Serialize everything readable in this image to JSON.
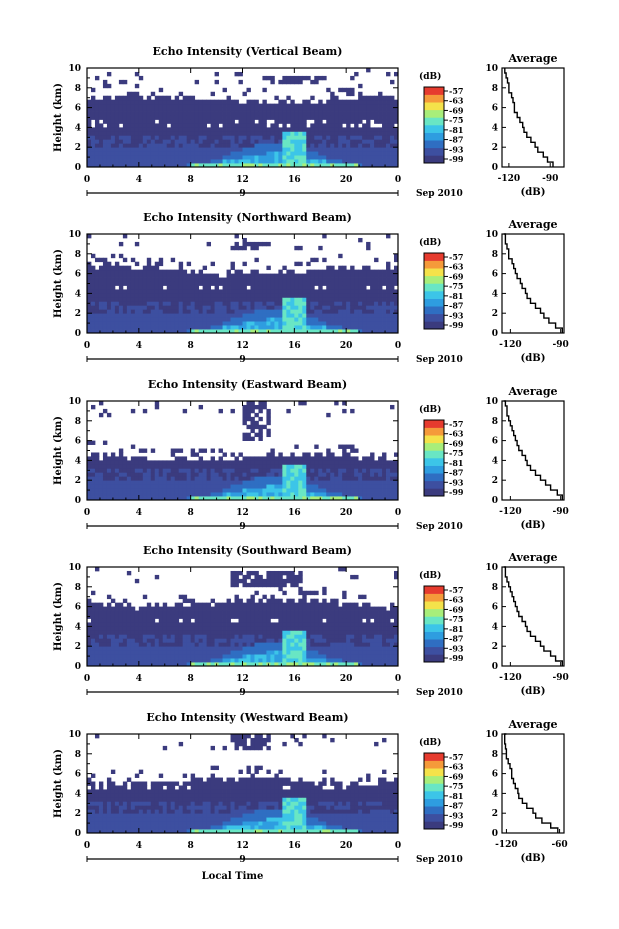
{
  "chart_data": [
    {
      "type": "heatmap",
      "title": "Echo Intensity (Vertical Beam)",
      "ylabel": "Height (km)",
      "xticks": [
        "0",
        "4",
        "8",
        "12",
        "16",
        "20",
        "0"
      ],
      "yticks": [
        "0",
        "2",
        "4",
        "6",
        "8",
        "10"
      ],
      "xlim": [
        0,
        24
      ],
      "ylim": [
        0,
        10
      ],
      "date_label": "9",
      "date_suffix": "Sep 2010",
      "colorbar": {
        "label": "(dB)",
        "ticks": [
          "-57",
          "-63",
          "-69",
          "-75",
          "-81",
          "-87",
          "-93",
          "-99"
        ]
      },
      "grid": {
        "top_base_km": 6.8,
        "mid_top_km": 4.0,
        "upper_patch": [
          14.0,
          18.0,
          8.5,
          9.2
        ],
        "streak_hour": 16
      },
      "average": {
        "title": "Average",
        "xlabel": "(dB)",
        "xticks": [
          "-120",
          "-90"
        ],
        "xlim": [
          -125,
          -80
        ],
        "height_km": [
          0,
          0.5,
          1,
          1.5,
          2,
          2.5,
          3,
          3.5,
          4,
          4.5,
          5,
          5.5,
          6,
          6.5,
          7,
          7.5,
          8,
          8.5,
          9,
          9.5,
          10
        ],
        "db": [
          -88,
          -92,
          -95,
          -99,
          -101,
          -104,
          -107,
          -109,
          -110,
          -112,
          -114,
          -116,
          -116,
          -117,
          -118,
          -120,
          -120,
          -121,
          -122,
          -123,
          -123
        ]
      }
    },
    {
      "type": "heatmap",
      "title": "Echo Intensity (Northward Beam)",
      "ylabel": "Height (km)",
      "xticks": [
        "0",
        "4",
        "8",
        "12",
        "16",
        "20",
        "0"
      ],
      "yticks": [
        "0",
        "2",
        "4",
        "6",
        "8",
        "10"
      ],
      "xlim": [
        0,
        24
      ],
      "ylim": [
        0,
        10
      ],
      "date_label": "9",
      "date_suffix": "Sep 2010",
      "colorbar": {
        "label": "(dB)",
        "ticks": [
          "-57",
          "-63",
          "-69",
          "-75",
          "-81",
          "-87",
          "-93",
          "-99"
        ]
      },
      "grid": {
        "top_base_km": 6.3,
        "mid_top_km": 4.2,
        "upper_patch": [
          11.0,
          14.0,
          8.3,
          9.3
        ],
        "streak_hour": 16
      },
      "average": {
        "title": "Average",
        "xlabel": "(dB)",
        "xticks": [
          "-120",
          "-90"
        ],
        "xlim": [
          -125,
          -88
        ],
        "height_km": [
          0,
          0.5,
          1,
          1.5,
          2,
          2.5,
          3,
          3.5,
          4,
          4.5,
          5,
          5.5,
          6,
          6.5,
          7,
          7.5,
          8,
          8.5,
          9,
          9.5,
          10
        ],
        "db": [
          -89,
          -93,
          -97,
          -100,
          -102,
          -105,
          -108,
          -110,
          -111,
          -113,
          -114,
          -116,
          -117,
          -118,
          -119,
          -121,
          -121,
          -122,
          -123,
          -123,
          -124
        ]
      }
    },
    {
      "type": "heatmap",
      "title": "Echo Intensity (Eastward Beam)",
      "ylabel": "Height (km)",
      "xticks": [
        "0",
        "4",
        "8",
        "12",
        "16",
        "20",
        "0"
      ],
      "yticks": [
        "0",
        "2",
        "4",
        "6",
        "8",
        "10"
      ],
      "xlim": [
        0,
        24
      ],
      "ylim": [
        0,
        10
      ],
      "date_label": "9",
      "date_suffix": "Sep 2010",
      "colorbar": {
        "label": "(dB)",
        "ticks": [
          "-57",
          "-63",
          "-69",
          "-75",
          "-81",
          "-87",
          "-93",
          "-99"
        ]
      },
      "grid": {
        "top_base_km": 4.4,
        "mid_top_km": 4.0,
        "upper_patch": [
          12.0,
          14.0,
          6.0,
          9.8
        ],
        "streak_hour": 16
      },
      "average": {
        "title": "Average",
        "xlabel": "(dB)",
        "xticks": [
          "-120",
          "-90"
        ],
        "xlim": [
          -125,
          -88
        ],
        "height_km": [
          0,
          0.5,
          1,
          1.5,
          2,
          2.5,
          3,
          3.5,
          4,
          4.5,
          5,
          5.5,
          6,
          6.5,
          7,
          7.5,
          8,
          8.5,
          9,
          9.5,
          10
        ],
        "db": [
          -89,
          -92,
          -96,
          -99,
          -102,
          -105,
          -108,
          -110,
          -111,
          -113,
          -115,
          -116,
          -117,
          -118,
          -119,
          -120,
          -121,
          -122,
          -122,
          -123,
          -124
        ]
      }
    },
    {
      "type": "heatmap",
      "title": "Echo Intensity (Southward Beam)",
      "ylabel": "Height (km)",
      "xticks": [
        "0",
        "4",
        "8",
        "12",
        "16",
        "20",
        "0"
      ],
      "yticks": [
        "0",
        "2",
        "4",
        "6",
        "8",
        "10"
      ],
      "xlim": [
        0,
        24
      ],
      "ylim": [
        0,
        10
      ],
      "date_label": "9",
      "date_suffix": "Sep 2010",
      "colorbar": {
        "label": "(dB)",
        "ticks": [
          "-57",
          "-63",
          "-69",
          "-75",
          "-81",
          "-87",
          "-93",
          "-99"
        ]
      },
      "grid": {
        "top_base_km": 6.3,
        "mid_top_km": 4.2,
        "upper_patch": [
          11.0,
          16.5,
          8.2,
          9.5
        ],
        "streak_hour": 16
      },
      "average": {
        "title": "Average",
        "xlabel": "(dB)",
        "xticks": [
          "-120",
          "-90"
        ],
        "xlim": [
          -125,
          -88
        ],
        "height_km": [
          0,
          0.5,
          1,
          1.5,
          2,
          2.5,
          3,
          3.5,
          4,
          4.5,
          5,
          5.5,
          6,
          6.5,
          7,
          7.5,
          8,
          8.5,
          9,
          9.5,
          10
        ],
        "db": [
          -89,
          -93,
          -96,
          -100,
          -102,
          -105,
          -108,
          -110,
          -111,
          -113,
          -115,
          -116,
          -117,
          -118,
          -119,
          -120,
          -121,
          -122,
          -123,
          -123,
          -124
        ]
      }
    },
    {
      "type": "heatmap",
      "title": "Echo Intensity (Westward Beam)",
      "ylabel": "Height (km)",
      "xticks": [
        "0",
        "4",
        "8",
        "12",
        "16",
        "20",
        "0"
      ],
      "yticks": [
        "0",
        "2",
        "4",
        "6",
        "8",
        "10"
      ],
      "xlim": [
        0,
        24
      ],
      "ylim": [
        0,
        10
      ],
      "date_label": "9",
      "date_suffix": "Sep 2010",
      "xlabel": "Local Time",
      "colorbar": {
        "label": "(dB)",
        "ticks": [
          "-57",
          "-63",
          "-69",
          "-75",
          "-81",
          "-87",
          "-93",
          "-99"
        ]
      },
      "grid": {
        "top_base_km": 5.2,
        "mid_top_km": 4.3,
        "upper_patch": [
          11.0,
          14.0,
          8.6,
          9.8
        ],
        "streak_hour": 16
      },
      "average": {
        "title": "Average",
        "xlabel": "(dB)",
        "xticks": [
          "-120",
          "-60"
        ],
        "xlim": [
          -125,
          -55
        ],
        "height_km": [
          0,
          0.5,
          1,
          1.5,
          2,
          2.5,
          3,
          3.5,
          4,
          4.5,
          5,
          5.5,
          6,
          6.5,
          7,
          7.5,
          8,
          8.5,
          9,
          9.5,
          10
        ],
        "db": [
          -62,
          -70,
          -80,
          -87,
          -90,
          -97,
          -102,
          -106,
          -107,
          -110,
          -112,
          -114,
          -114,
          -116,
          -118,
          -120,
          -120,
          -121,
          -122,
          -122,
          -120
        ]
      }
    }
  ],
  "colors": {
    "background": "#ffffff",
    "empty": "#ffffff",
    "colormap": [
      "#3b3b7e",
      "#3d4fa0",
      "#2f6ec2",
      "#2e9de0",
      "#3cc5e8",
      "#69e6c4",
      "#a8ee7a",
      "#f4e24a",
      "#f59a3a",
      "#e63b2e"
    ]
  }
}
